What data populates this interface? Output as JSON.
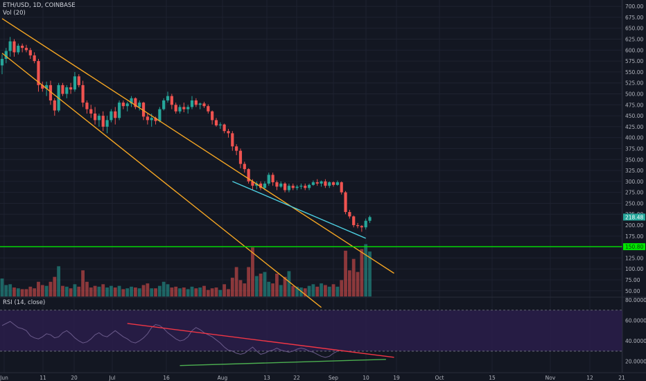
{
  "header": {
    "symbol": "ETH/USD, 1D, COINBASE",
    "volume_indicator": "Vol (20)",
    "rsi_indicator": "RSI (14, close)"
  },
  "colors": {
    "background": "#131722",
    "up": "#26a69a",
    "down": "#ef5350",
    "channel": "#f5a623",
    "support": "#00e600",
    "cyan": "#4dd0e1",
    "rsi_band": "#2a1d4a",
    "rsi_line": "#6a5a8a",
    "rsi_trend_red": "#f23645",
    "rsi_trend_green": "#4caf50"
  },
  "chart_data": {
    "type": "candlestick",
    "price_axis": {
      "min": 37,
      "max": 705,
      "ticks": [
        "50.00",
        "75.00",
        "100.00",
        "125.00",
        "150.00",
        "175.00",
        "200.00",
        "225.00",
        "250.00",
        "275.00",
        "300.00",
        "325.00",
        "350.00",
        "375.00",
        "400.00",
        "425.00",
        "450.00",
        "475.00",
        "500.00",
        "525.00",
        "550.00",
        "575.00",
        "600.00",
        "625.00",
        "650.00",
        "675.00",
        "700.00"
      ]
    },
    "price_labels": [
      {
        "value": 218.48,
        "text": "218.48"
      },
      {
        "value": 150.8,
        "text": "150.80"
      }
    ],
    "x_axis": {
      "labels": [
        "Jun",
        "11",
        "20",
        "Jul",
        "16",
        "Aug",
        "13",
        "22",
        "Sep",
        "10",
        "19",
        "Oct",
        "15",
        "Nov",
        "12",
        "21"
      ]
    },
    "rsi_axis": {
      "min": 9,
      "max": 82,
      "ticks": [
        "20.0000",
        "40.0000",
        "60.0000",
        "80.0000"
      ],
      "band": [
        30,
        70
      ]
    },
    "candles": [
      [
        565,
        590,
        545,
        580,
        2.2
      ],
      [
        580,
        605,
        570,
        598,
        1.4
      ],
      [
        598,
        630,
        585,
        620,
        1.5
      ],
      [
        620,
        625,
        585,
        595,
        1.1
      ],
      [
        595,
        615,
        590,
        610,
        1.0
      ],
      [
        610,
        615,
        595,
        605,
        0.9
      ],
      [
        605,
        612,
        595,
        600,
        0.9
      ],
      [
        600,
        605,
        580,
        588,
        1.2
      ],
      [
        588,
        595,
        570,
        575,
        1.0
      ],
      [
        575,
        580,
        505,
        520,
        1.8
      ],
      [
        520,
        528,
        505,
        512,
        1.4
      ],
      [
        512,
        528,
        495,
        520,
        1.3
      ],
      [
        520,
        530,
        475,
        485,
        1.8
      ],
      [
        485,
        490,
        450,
        462,
        2.4
      ],
      [
        462,
        525,
        458,
        520,
        3.7
      ],
      [
        520,
        525,
        495,
        500,
        1.3
      ],
      [
        500,
        520,
        490,
        515,
        1.2
      ],
      [
        515,
        525,
        500,
        510,
        1.0
      ],
      [
        510,
        550,
        505,
        540,
        1.5
      ],
      [
        540,
        545,
        515,
        520,
        1.2
      ],
      [
        520,
        530,
        470,
        480,
        3.2
      ],
      [
        480,
        485,
        455,
        465,
        1.8
      ],
      [
        465,
        475,
        445,
        455,
        1.1
      ],
      [
        455,
        470,
        430,
        440,
        1.3
      ],
      [
        440,
        455,
        425,
        450,
        1.2
      ],
      [
        450,
        460,
        415,
        425,
        1.5
      ],
      [
        425,
        450,
        410,
        440,
        1.1
      ],
      [
        440,
        465,
        435,
        460,
        1.3
      ],
      [
        460,
        470,
        430,
        445,
        1.1
      ],
      [
        445,
        485,
        440,
        480,
        1.3
      ],
      [
        480,
        485,
        465,
        472,
        0.9
      ],
      [
        472,
        482,
        460,
        478,
        1.0
      ],
      [
        478,
        495,
        470,
        490,
        1.2
      ],
      [
        490,
        492,
        465,
        470,
        1.1
      ],
      [
        470,
        485,
        462,
        480,
        1.0
      ],
      [
        480,
        482,
        440,
        448,
        1.4
      ],
      [
        448,
        455,
        430,
        440,
        1.6
      ],
      [
        440,
        455,
        425,
        445,
        1.0
      ],
      [
        445,
        448,
        430,
        438,
        1.0
      ],
      [
        438,
        470,
        435,
        465,
        1.3
      ],
      [
        465,
        490,
        462,
        485,
        1.8
      ],
      [
        485,
        505,
        480,
        495,
        1.5
      ],
      [
        495,
        500,
        465,
        475,
        1.1
      ],
      [
        475,
        480,
        455,
        460,
        1.2
      ],
      [
        460,
        475,
        455,
        470,
        1.0
      ],
      [
        470,
        480,
        458,
        465,
        1.1
      ],
      [
        465,
        475,
        455,
        470,
        0.9
      ],
      [
        470,
        495,
        465,
        485,
        1.2
      ],
      [
        485,
        490,
        470,
        475,
        1.0
      ],
      [
        475,
        480,
        465,
        478,
        1.1
      ],
      [
        478,
        482,
        468,
        472,
        1.3
      ],
      [
        472,
        476,
        455,
        460,
        0.8
      ],
      [
        460,
        462,
        430,
        440,
        1.0
      ],
      [
        440,
        445,
        425,
        428,
        1.1
      ],
      [
        428,
        435,
        420,
        430,
        0.8
      ],
      [
        430,
        432,
        410,
        415,
        1.5
      ],
      [
        415,
        420,
        400,
        410,
        0.9
      ],
      [
        410,
        415,
        370,
        380,
        2.3
      ],
      [
        380,
        385,
        360,
        370,
        3.6
      ],
      [
        370,
        375,
        330,
        340,
        2.0
      ],
      [
        340,
        345,
        320,
        328,
        1.6
      ],
      [
        328,
        330,
        295,
        300,
        3.6
      ],
      [
        300,
        305,
        280,
        290,
        6.0
      ],
      [
        290,
        300,
        282,
        295,
        2.5
      ],
      [
        295,
        300,
        280,
        285,
        2.8
      ],
      [
        285,
        300,
        280,
        295,
        3.0
      ],
      [
        295,
        320,
        290,
        315,
        1.8
      ],
      [
        315,
        320,
        290,
        298,
        1.6
      ],
      [
        298,
        302,
        280,
        288,
        2.8
      ],
      [
        288,
        300,
        285,
        295,
        1.4
      ],
      [
        295,
        298,
        275,
        280,
        2.4
      ],
      [
        280,
        295,
        275,
        290,
        3.1
      ],
      [
        290,
        295,
        280,
        285,
        1.3
      ],
      [
        285,
        292,
        280,
        288,
        1.2
      ],
      [
        288,
        295,
        282,
        290,
        1.1
      ],
      [
        290,
        295,
        280,
        285,
        1.0
      ],
      [
        285,
        295,
        280,
        292,
        1.3
      ],
      [
        292,
        302,
        290,
        298,
        1.5
      ],
      [
        298,
        305,
        290,
        295,
        1.2
      ],
      [
        295,
        302,
        288,
        300,
        1.6
      ],
      [
        300,
        305,
        285,
        290,
        1.4
      ],
      [
        290,
        300,
        285,
        298,
        1.2
      ],
      [
        298,
        300,
        288,
        292,
        1.5
      ],
      [
        292,
        302,
        290,
        298,
        1.2
      ],
      [
        298,
        300,
        270,
        275,
        2.0
      ],
      [
        275,
        278,
        225,
        230,
        5.6
      ],
      [
        230,
        235,
        215,
        220,
        3.2
      ],
      [
        220,
        222,
        195,
        200,
        4.6
      ],
      [
        200,
        205,
        193,
        198,
        3.0
      ],
      [
        198,
        200,
        185,
        195,
        5.8
      ],
      [
        195,
        215,
        190,
        210,
        6.4
      ],
      [
        210,
        222,
        205,
        218.48,
        5.5
      ]
    ],
    "rsi_series": [
      55,
      57,
      59,
      56,
      53,
      52,
      50,
      45,
      43,
      42,
      44,
      47,
      46,
      43,
      44,
      48,
      50,
      47,
      43,
      40,
      38,
      39,
      42,
      46,
      48,
      45,
      44,
      47,
      50,
      47,
      44,
      42,
      39,
      38,
      40,
      43,
      47,
      53,
      56,
      55,
      52,
      48,
      45,
      42,
      40,
      41,
      44,
      50,
      53,
      51,
      48,
      46,
      44,
      41,
      38,
      34,
      31,
      30,
      28,
      27,
      28,
      31,
      34,
      30,
      27,
      28,
      30,
      31,
      33,
      31,
      30,
      29,
      30,
      32,
      33,
      32,
      30,
      29,
      27,
      25,
      24,
      25,
      28,
      30
    ],
    "annotations": [
      {
        "kind": "channel-upper",
        "points": [
          [
            "d0",
            672
          ],
          [
            "d97",
            90
          ]
        ]
      },
      {
        "kind": "channel-lower",
        "points": [
          [
            "d0",
            593
          ],
          [
            "d79",
            12
          ]
        ]
      },
      {
        "kind": "support-level",
        "value": 150.8
      },
      {
        "kind": "wedge-line",
        "points": [
          [
            "d57",
            300
          ],
          [
            "d90",
            170
          ]
        ]
      },
      {
        "kind": "rsi-trend-red",
        "points": [
          [
            "d31",
            57
          ],
          [
            "d97",
            24
          ]
        ]
      },
      {
        "kind": "rsi-trend-green",
        "points": [
          [
            "d44",
            16
          ],
          [
            "d95",
            22
          ]
        ]
      }
    ]
  }
}
